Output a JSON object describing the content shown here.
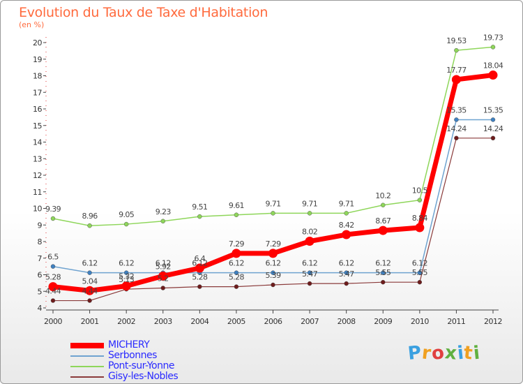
{
  "title": "Evolution du Taux de Taxe d'Habitation",
  "subtitle": "(en %)",
  "logo_letters": [
    "P",
    "r",
    "o",
    "x",
    "i",
    "t",
    "i"
  ],
  "logo_colors": [
    "#3aa0e0",
    "#f0a020",
    "#e04040",
    "#60b040",
    "#3aa0e0",
    "#f0a020",
    "#60b040"
  ],
  "chart_data": {
    "type": "line",
    "x": [
      2000,
      2001,
      2002,
      2003,
      2004,
      2005,
      2006,
      2007,
      2008,
      2009,
      2010,
      2011,
      2012
    ],
    "ylim": [
      4,
      20
    ],
    "yticks": [
      4,
      5,
      6,
      7,
      8,
      9,
      10,
      11,
      12,
      13,
      14,
      15,
      16,
      17,
      18,
      19,
      20
    ],
    "grid": false,
    "legend_position": "bottom-left",
    "series": [
      {
        "name": "Pont-sur-Yonne",
        "color": "#8ed65a",
        "line_width": 1.5,
        "marker": "#8ed65a",
        "values": [
          9.39,
          8.96,
          9.05,
          9.23,
          9.51,
          9.61,
          9.71,
          9.71,
          9.71,
          10.2,
          10.5,
          19.53,
          19.73
        ],
        "labels": [
          "9.39",
          "8.96",
          "9.05",
          "9.23",
          "9.51",
          "9.61",
          "9.71",
          "9.71",
          "9.71",
          "10.2",
          "10.5",
          "19.53",
          "19.73"
        ]
      },
      {
        "name": "Serbonnes",
        "color": "#6fa3d0",
        "line_width": 1.5,
        "marker": "#3f80c0",
        "values": [
          6.5,
          6.12,
          6.12,
          6.12,
          6.12,
          6.12,
          6.12,
          6.12,
          6.12,
          6.12,
          6.12,
          15.35,
          15.35
        ],
        "labels": [
          "6.5",
          "6.12",
          "6.12",
          "6.12",
          "6.12",
          "6.12",
          "6.12",
          "6.12",
          "6.12",
          "6.12",
          "6.12",
          "15.35",
          "15.35"
        ]
      },
      {
        "name": "Gisy-les-Nobles",
        "color": "#8a3a3a",
        "line_width": 1.2,
        "marker": "#6e1c1c",
        "values": [
          4.44,
          4.44,
          5.13,
          5.2,
          5.28,
          5.28,
          5.39,
          5.47,
          5.47,
          5.55,
          5.55,
          14.24,
          14.24
        ],
        "labels": [
          "4.44",
          "4.44",
          "5.13",
          "5.2",
          "5.28",
          "5.28",
          "5.39",
          "5.47",
          "5.47",
          "5.55",
          "5.55",
          "14.24",
          "14.24"
        ]
      },
      {
        "name": "MICHERY",
        "color": "#ff0000",
        "line_width": 7,
        "marker": "#ff0000",
        "values": [
          5.28,
          5.04,
          5.32,
          5.92,
          6.4,
          7.29,
          7.29,
          8.02,
          8.42,
          8.67,
          8.84,
          17.77,
          18.04
        ],
        "labels": [
          "5.28",
          "5.04",
          "5.32",
          "5.92",
          "6.4",
          "7.29",
          "7.29",
          "8.02",
          "8.42",
          "8.67",
          "8.84",
          "17.77",
          "18.04"
        ]
      }
    ]
  }
}
